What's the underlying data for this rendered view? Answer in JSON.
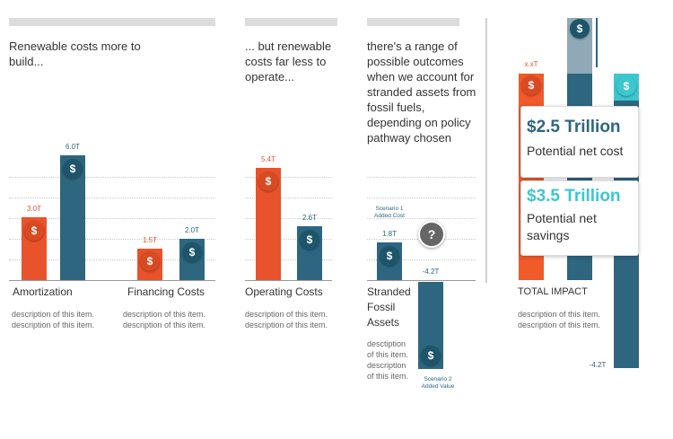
{
  "colors": {
    "cost": "#e8532b",
    "value": "#2e6680",
    "savings": "#3cc7cf",
    "question": "#666666"
  },
  "headings": {
    "col1": [
      "Renewable costs more to",
      "build..."
    ],
    "col2": [
      "... but renewable",
      "costs far less to",
      "operate..."
    ],
    "col3": [
      "there's a range of",
      "possible outcomes",
      "when we account for",
      "stranded assets from",
      "fossil fuels,",
      "depending on policy",
      "pathway chosen"
    ]
  },
  "categories": {
    "amortization": "Amortization",
    "financing": "Financing Costs",
    "operating": "Operating Costs",
    "stranded": [
      "Stranded",
      "Fossil",
      "Assets"
    ],
    "total": "TOTAL IMPACT"
  },
  "descriptions": {
    "amortization": [
      "description of this item.",
      "description of this item."
    ],
    "financing": [
      "description of this item.",
      "description of this item."
    ],
    "operating": [
      "description of this item.",
      "description of this item."
    ],
    "stranded": [
      "desctiption",
      "of this item.",
      "description",
      "of this item."
    ],
    "total": [
      "description of this item.",
      "description of this item."
    ]
  },
  "scenario_labels": {
    "s1": [
      "Scenario 1",
      "Added Cost"
    ],
    "s2": [
      "Scenario 2",
      "Added Value"
    ]
  },
  "icons": {
    "coin": "$",
    "help": "?"
  },
  "cards": {
    "cost": {
      "amount": "$2.5 Trillion",
      "label": "Potential net cost"
    },
    "savings": {
      "amount": "$3.5 Trillion",
      "label_lines": [
        "Potential net",
        "savings"
      ]
    }
  },
  "total_labels": {
    "top": "x.xT",
    "bottom": "-4.2T"
  },
  "chart_data": {
    "type": "bar",
    "categories": [
      "Amortization",
      "Financing Costs",
      "Operating Costs",
      "Stranded Fossil Assets"
    ],
    "series": [
      {
        "values": [
          3.0,
          1.5,
          5.4,
          null
        ]
      },
      {
        "values": [
          6.0,
          2.0,
          2.6,
          1.8
        ]
      }
    ],
    "value_labels": [
      [
        "3.0T",
        "1.5T",
        "5.4T",
        ""
      ],
      [
        "6.0T",
        "2.0T",
        "2.6T",
        "1.8T"
      ]
    ],
    "stranded_scenario_2": {
      "value": -4.2,
      "label": "-4.2T"
    },
    "ylabel": "",
    "ylim": [
      -4.2,
      6.0
    ]
  }
}
